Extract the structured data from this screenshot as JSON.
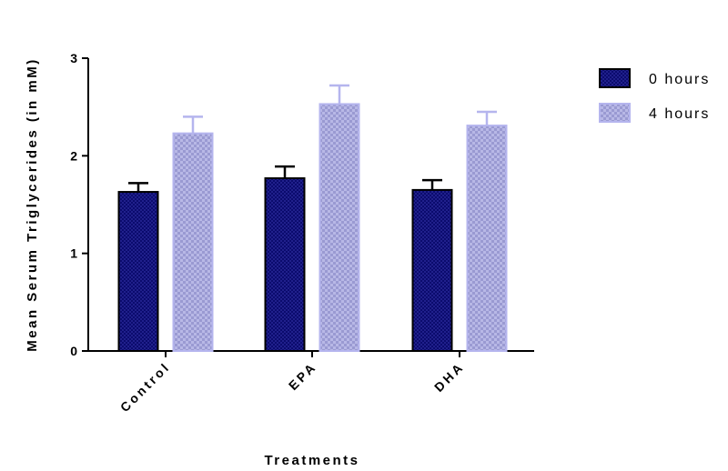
{
  "chart_data": {
    "type": "bar",
    "xlabel": "Treatments",
    "ylabel": "Mean Serum Triglycerides (in mM)",
    "categories": [
      "Control",
      "EPA",
      "DHA"
    ],
    "ylim": [
      0,
      3
    ],
    "yticks": [
      "0",
      "1",
      "2",
      "3"
    ],
    "legend_position": "top-right",
    "grid": false,
    "series": [
      {
        "name": "0 hours",
        "values": [
          1.63,
          1.77,
          1.65
        ],
        "errors": [
          0.09,
          0.12,
          0.1
        ],
        "color": "#0b0b6e",
        "edge": "#000000"
      },
      {
        "name": "4 hours",
        "values": [
          2.23,
          2.53,
          2.31
        ],
        "errors": [
          0.17,
          0.19,
          0.14
        ],
        "color": "#a0a0dc",
        "edge": "#b5b5ee"
      }
    ]
  }
}
